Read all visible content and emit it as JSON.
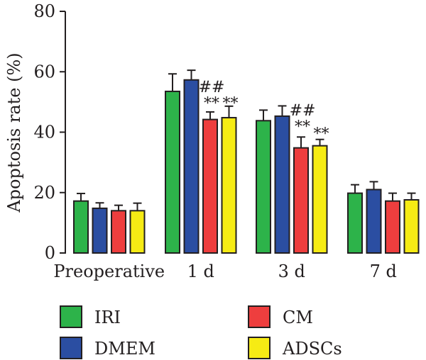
{
  "chart_data": {
    "type": "bar",
    "title": "",
    "xlabel": "",
    "ylabel": "Apoptosis rate (%)",
    "ylim": [
      0,
      80
    ],
    "yticks": [
      0,
      20,
      40,
      60,
      80
    ],
    "grid": false,
    "legend_position": "bottom",
    "categories": [
      "Preoperative",
      "1 d",
      "3 d",
      "7 d"
    ],
    "series": [
      {
        "name": "IRI",
        "color": "#2db34a",
        "values": [
          17.2,
          53.5,
          43.8,
          19.8
        ],
        "errors": [
          2.5,
          5.8,
          3.5,
          2.8
        ]
      },
      {
        "name": "DMEM",
        "color": "#2b4ea2",
        "values": [
          14.8,
          57.3,
          45.3,
          21.0
        ],
        "errors": [
          1.8,
          3.2,
          3.4,
          2.6
        ]
      },
      {
        "name": "CM",
        "color": "#ee3e3e",
        "values": [
          14.0,
          44.2,
          34.8,
          17.2
        ],
        "errors": [
          1.8,
          2.5,
          3.6,
          2.6
        ]
      },
      {
        "name": "ADSCs",
        "color": "#f6eb14",
        "values": [
          14.0,
          44.8,
          35.5,
          17.6
        ],
        "errors": [
          2.5,
          3.8,
          2.1,
          2.2
        ]
      }
    ],
    "annotations": [
      {
        "category": "1 d",
        "series": "CM",
        "text": "##"
      },
      {
        "category": "1 d",
        "series": "CM",
        "text": "**"
      },
      {
        "category": "1 d",
        "series": "ADSCs",
        "text": "**"
      },
      {
        "category": "3 d",
        "series": "CM",
        "text": "##"
      },
      {
        "category": "3 d",
        "series": "CM",
        "text": "**"
      },
      {
        "category": "3 d",
        "series": "ADSCs",
        "text": "**"
      }
    ]
  }
}
